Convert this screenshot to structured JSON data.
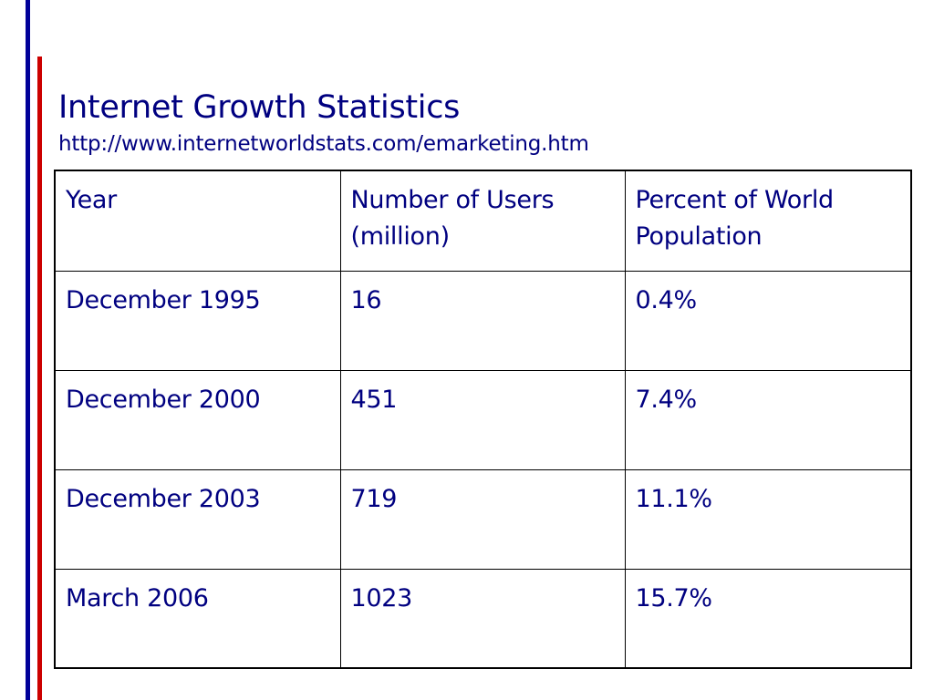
{
  "colors": {
    "text": "#000080",
    "blue_rule": "#000099",
    "red_rule": "#CC0000",
    "table_border": "#000000"
  },
  "slide": {
    "title": "Internet Growth Statistics",
    "subtitle": "http://www.internetworldstats.com/emarketing.htm"
  },
  "table": {
    "headers": [
      "Year",
      "Number of Users (million)",
      "Percent of World Population"
    ],
    "rows": [
      [
        "December 1995",
        "16",
        "0.4%"
      ],
      [
        "December 2000",
        "451",
        "7.4%"
      ],
      [
        "December 2003",
        "719",
        "11.1%"
      ],
      [
        "March 2006",
        "1023",
        "15.7%"
      ]
    ]
  }
}
